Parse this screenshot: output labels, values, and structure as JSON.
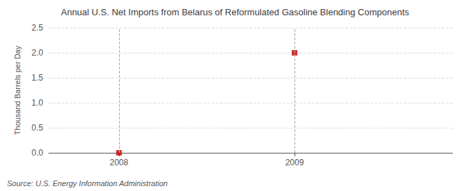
{
  "chart_data": {
    "type": "scatter",
    "title": "Annual U.S. Net Imports from Belarus of Reformulated Gasoline Blending Components",
    "y_label": "Thousand Barrels per Day",
    "annotations": [
      "Source: U.S. Energy Information Administration"
    ],
    "x": [
      2008,
      2009
    ],
    "values": [
      0.0,
      2.0
    ],
    "color": "#cc0000",
    "marker": "square",
    "xlim": [
      2007.6,
      2009.9
    ],
    "xticks": [
      2008,
      2009
    ],
    "ylim": [
      0.0,
      2.5
    ],
    "yticks": [
      {
        "value": 0.0,
        "label": "0.0"
      },
      0.5,
      {
        "value": 1.0,
        "label": "1.0"
      },
      1.5,
      {
        "value": 2.0,
        "label": "2.0"
      },
      2.5
    ],
    "grid": true
  }
}
